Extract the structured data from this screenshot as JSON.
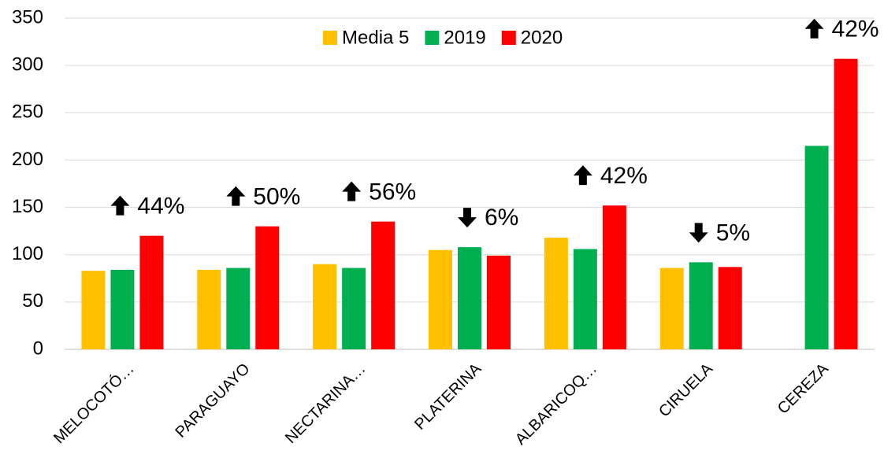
{
  "chart_data": {
    "type": "bar",
    "categories": [
      "MELOCOTÓ…",
      "PARAGUAYO",
      "NECTARINA…",
      "PLATERINA",
      "ALBARICOQ…",
      "CIRUELA",
      "CEREZA"
    ],
    "series": [
      {
        "name": "Media 5",
        "color": "#ffc000",
        "values": [
          83,
          84,
          90,
          105,
          118,
          86,
          null
        ]
      },
      {
        "name": "2019",
        "color": "#00b050",
        "values": [
          84,
          86,
          86,
          108,
          106,
          92,
          215
        ]
      },
      {
        "name": "2020",
        "color": "#ff0000",
        "values": [
          120,
          130,
          135,
          99,
          152,
          87,
          307
        ]
      }
    ],
    "annotations": [
      {
        "text": "44%",
        "direction": "up"
      },
      {
        "text": "50%",
        "direction": "up"
      },
      {
        "text": "56%",
        "direction": "up"
      },
      {
        "text": "6%",
        "direction": "down"
      },
      {
        "text": "42%",
        "direction": "up"
      },
      {
        "text": "5%",
        "direction": "down"
      },
      {
        "text": "42%",
        "direction": "up"
      }
    ],
    "ylim": [
      0,
      350
    ],
    "yticks": [
      0,
      50,
      100,
      150,
      200,
      250,
      300,
      350
    ],
    "grid": true,
    "legend": "top"
  }
}
